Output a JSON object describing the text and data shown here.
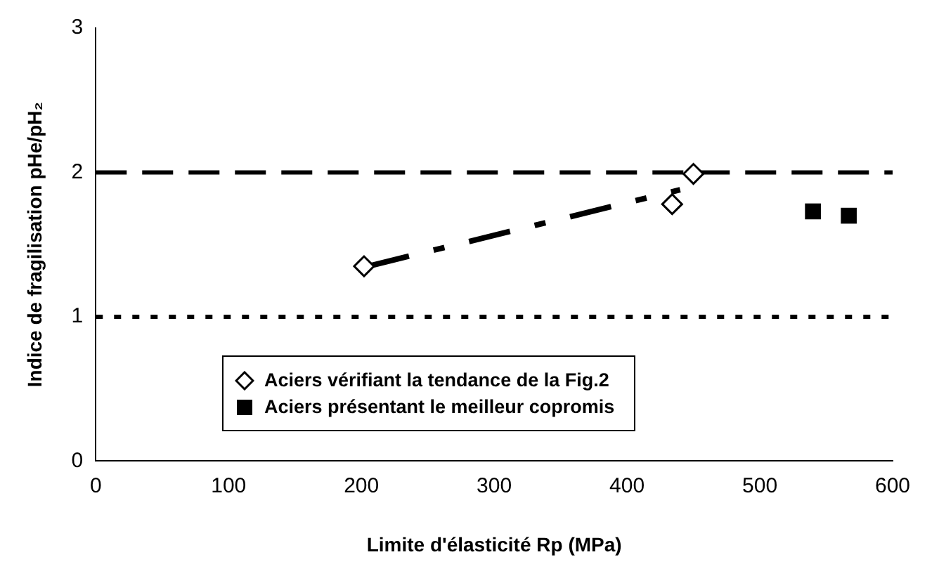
{
  "chart_data": {
    "type": "scatter",
    "xlabel": "Limite d'élasticité Rp (MPa)",
    "ylabel": "Indice de fragilisation pHe/pH₂",
    "series": [
      {
        "name": "Aciers vérifiant la tendance de la Fig.2",
        "color": "#000000",
        "marker": "diamond",
        "x": [
          202,
          434,
          450
        ],
        "values": [
          1.35,
          1.78,
          1.99
        ]
      },
      {
        "name": "Aciers présentant le meilleur copromis",
        "color": "#000000",
        "marker": "square",
        "x": [
          540,
          567
        ],
        "values": [
          1.73,
          1.7
        ]
      },
      {
        "type": "line",
        "color": "#000000",
        "line_style": "dashdot",
        "x": [
          205,
          440
        ],
        "values": [
          1.35,
          1.88
        ]
      }
    ],
    "xlim": [
      0,
      600
    ],
    "xticks": [
      0,
      100,
      200,
      300,
      400,
      500,
      600
    ],
    "ylim": [
      0,
      3
    ],
    "yticks": [
      0,
      1,
      2,
      3
    ],
    "ref_lines": [
      {
        "axis": "y",
        "value": 2,
        "line_style": "dashed"
      },
      {
        "axis": "y",
        "value": 1,
        "line_style": "dotted"
      }
    ],
    "grid": false,
    "legend": "bottom"
  }
}
